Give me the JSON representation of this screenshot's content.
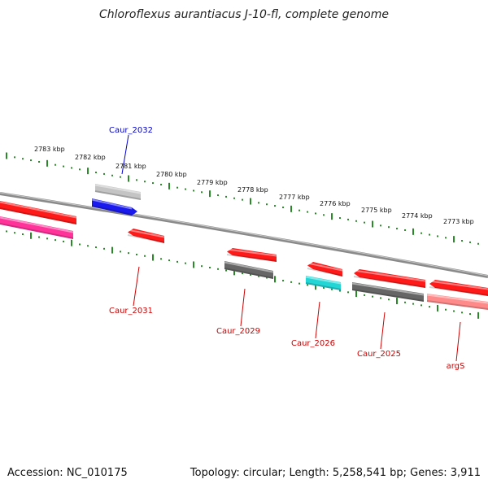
{
  "title": "Chloroflexus aurantiacus J-10-fl, complete genome",
  "footer": {
    "accession": "Accession: NC_010175",
    "summary": "Topology: circular; Length: 5,258,541 bp; Genes: 3,911"
  },
  "colors": {
    "tick": "#2a8a2a",
    "backbone": "#8a8a8a",
    "label_red": "#cc0000",
    "label_blue": "#0000cc",
    "red": "#ff1a1a",
    "pink": "#ff3399",
    "blue": "#1a1aee",
    "gray": "#666666",
    "lightgray": "#c4c4c4",
    "cyan": "#22d6d6",
    "salmon": "#ff8a8a"
  },
  "kbp_labels": [
    "2783 kbp",
    "2782 kbp",
    "2781 kbp",
    "2780 kbp",
    "2779 kbp",
    "2778 kbp",
    "2777 kbp",
    "2776 kbp",
    "2775 kbp",
    "2774 kbp",
    "2773 kbp"
  ],
  "features": [
    {
      "name": "Caur_2032",
      "labeled": true,
      "label_color": "label_blue"
    },
    {
      "name": "Caur_2031",
      "labeled": true,
      "label_color": "label_red"
    },
    {
      "name": "Caur_2029",
      "labeled": true,
      "label_color": "label_red"
    },
    {
      "name": "Caur_2026",
      "labeled": true,
      "label_color": "label_red"
    },
    {
      "name": "Caur_2025",
      "labeled": true,
      "label_color": "label_red"
    },
    {
      "name": "argS",
      "labeled": true,
      "label_color": "label_red"
    }
  ]
}
